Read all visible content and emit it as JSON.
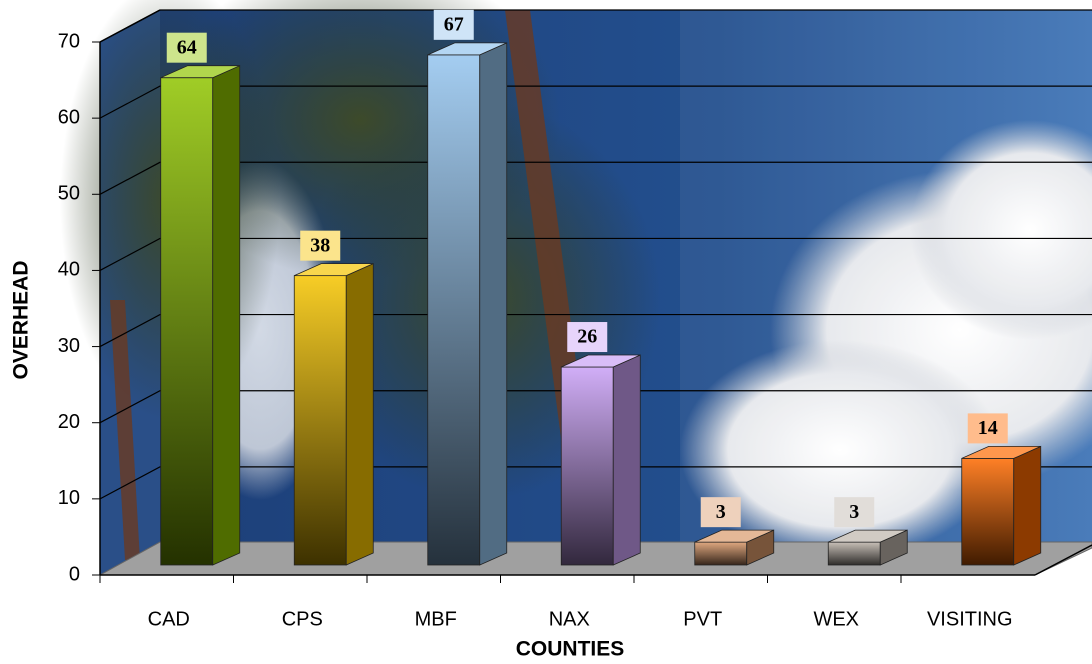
{
  "chart_data": {
    "type": "bar3d",
    "x_label": "COUNTIES",
    "y_label": "OVERHEAD",
    "categories": [
      "CAD",
      "CPS",
      "MBF",
      "NAX",
      "PVT",
      "WEX",
      "VISITING"
    ],
    "values": [
      64,
      38,
      67,
      26,
      3,
      3,
      14
    ],
    "colors": [
      "#8fc400",
      "#f5c400",
      "#94c4ee",
      "#c9a0f5",
      "#d9996a",
      "#bdb4aa",
      "#ff6a00"
    ],
    "ylim": [
      0,
      70
    ],
    "yticks": [
      0,
      10,
      20,
      30,
      40,
      50,
      60,
      70
    ],
    "grid": true
  }
}
